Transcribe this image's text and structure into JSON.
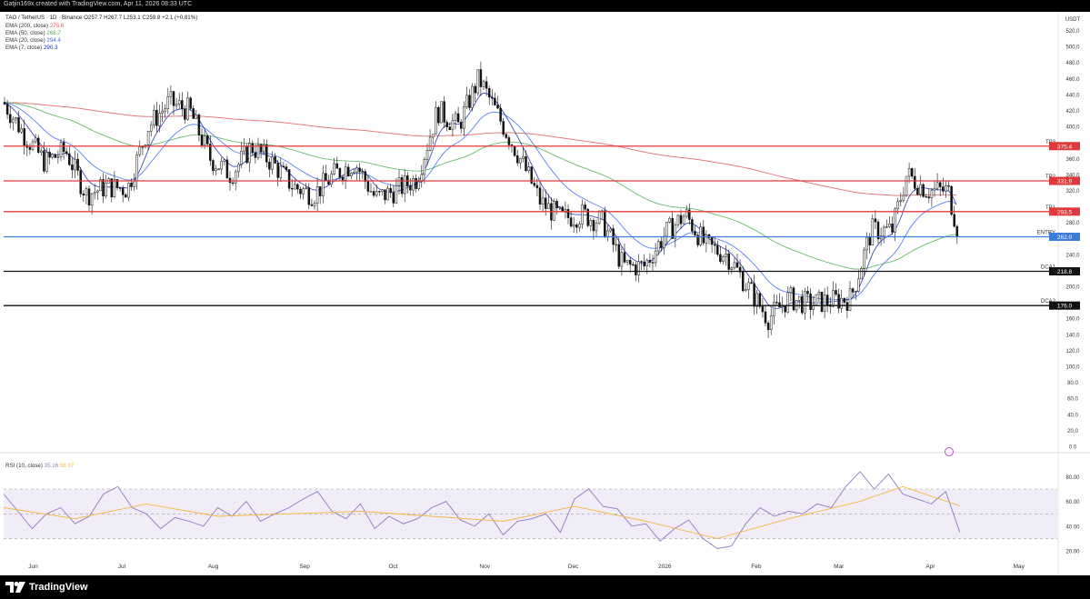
{
  "header": {
    "caption": "Gatjin169x created with TradingView.com, Apr 11, 2026 08:33 UTC"
  },
  "branding": {
    "logo_text": "TradingView",
    "logo_icon": "tradingview-logo-icon"
  },
  "legend": {
    "symbol_line": "TAO / TetherUS · 1D · Binance  O257.7  H267.7  L253.1  C259.8  +2.1 (+0.81%)",
    "ema_lines": [
      {
        "label": "EMA (200, close)",
        "value": "275.6",
        "color": "#e05555"
      },
      {
        "label": "EMA (50, close)",
        "value": "268.7",
        "color": "#4caf50"
      },
      {
        "label": "EMA (20, close)",
        "value": "294.4",
        "color": "#3d6bf0"
      },
      {
        "label": "EMA (7, close)",
        "value": "290.3",
        "color": "#1e2fb0"
      }
    ],
    "rsi_label": "RSI (10, close)",
    "rsi_values": [
      {
        "value": "35.16",
        "color": "#8e7cc3"
      },
      {
        "value": "56.37",
        "color": "#f5b740"
      }
    ]
  },
  "colors": {
    "up": "#2b2b2b",
    "down": "#141414",
    "tp": "#e0393b",
    "entry": "#3d7bd9",
    "dca": "#111111",
    "rsi": "#8e7cc3",
    "rsi_ma": "#f5b740",
    "rsi_band": "#ece7f6"
  },
  "chart_data": [
    {
      "type": "candlestick",
      "title": "TAO / TetherUS · 1D · Binance",
      "x_labels": [
        "Jun",
        "Jul",
        "Aug",
        "Sep",
        "Oct",
        "Nov",
        "Dec",
        "2026",
        "Feb",
        "Mar",
        "Apr",
        "May"
      ],
      "y_unit": "USDT",
      "y_ticks": [
        0,
        20,
        40,
        60,
        80,
        100,
        120,
        140,
        160,
        180,
        200,
        220,
        240,
        260,
        280,
        300,
        320,
        340,
        360,
        380,
        400,
        420,
        440,
        460,
        480,
        500,
        520
      ],
      "ylim": [
        0,
        532
      ],
      "grid": false,
      "levels": [
        {
          "name": "TP3",
          "value": 375.4,
          "label": "375.4",
          "kind": "tp"
        },
        {
          "name": "TP2",
          "value": 331.9,
          "label": "331.9",
          "kind": "tp"
        },
        {
          "name": "TP1",
          "value": 293.5,
          "label": "293.5",
          "kind": "tp"
        },
        {
          "name": "ENTRY",
          "value": 262.0,
          "label": "262.0",
          "kind": "entry"
        },
        {
          "name": "DCA1",
          "value": 218.8,
          "label": "218.8",
          "kind": "dca"
        },
        {
          "name": "DCA2",
          "value": 176.0,
          "label": "176.0",
          "kind": "dca"
        }
      ],
      "close_series": [
        [
          "2025-05-22",
          430
        ],
        [
          "2025-05-29",
          390
        ],
        [
          "2025-06-05",
          355
        ],
        [
          "2025-06-12",
          370
        ],
        [
          "2025-06-19",
          315
        ],
        [
          "2025-06-26",
          325
        ],
        [
          "2025-07-03",
          322
        ],
        [
          "2025-07-10",
          400
        ],
        [
          "2025-07-17",
          430
        ],
        [
          "2025-07-24",
          420
        ],
        [
          "2025-07-31",
          360
        ],
        [
          "2025-08-07",
          340
        ],
        [
          "2025-08-14",
          375
        ],
        [
          "2025-08-21",
          355
        ],
        [
          "2025-08-28",
          325
        ],
        [
          "2025-09-04",
          315
        ],
        [
          "2025-09-11",
          340
        ],
        [
          "2025-09-18",
          355
        ],
        [
          "2025-09-25",
          310
        ],
        [
          "2025-10-02",
          320
        ],
        [
          "2025-10-09",
          335
        ],
        [
          "2025-10-16",
          420
        ],
        [
          "2025-10-23",
          400
        ],
        [
          "2025-10-30",
          460
        ],
        [
          "2025-11-06",
          410
        ],
        [
          "2025-11-13",
          360
        ],
        [
          "2025-11-20",
          305
        ],
        [
          "2025-11-27",
          285
        ],
        [
          "2025-12-04",
          290
        ],
        [
          "2025-12-11",
          280
        ],
        [
          "2025-12-18",
          225
        ],
        [
          "2025-12-25",
          225
        ],
        [
          "2026-01-01",
          265
        ],
        [
          "2026-01-08",
          290
        ],
        [
          "2026-01-15",
          250
        ],
        [
          "2026-01-22",
          240
        ],
        [
          "2026-01-29",
          200
        ],
        [
          "2026-02-05",
          160
        ],
        [
          "2026-02-12",
          185
        ],
        [
          "2026-02-19",
          178
        ],
        [
          "2026-02-26",
          182
        ],
        [
          "2026-03-05",
          185
        ],
        [
          "2026-03-12",
          270
        ],
        [
          "2026-03-19",
          270
        ],
        [
          "2026-03-24",
          340
        ],
        [
          "2026-03-31",
          320
        ],
        [
          "2026-04-07",
          320
        ],
        [
          "2026-04-09",
          290
        ],
        [
          "2026-04-11",
          259.8
        ]
      ],
      "ema_series": {
        "EMA (200, close)": [
          360,
          368,
          372,
          368,
          362,
          355,
          345,
          330,
          310,
          295,
          285,
          275.6
        ],
        "EMA (50, close)": [
          370,
          362,
          356,
          348,
          345,
          370,
          310,
          275,
          225,
          195,
          240,
          268.7
        ]
      }
    },
    {
      "type": "line",
      "title": "RSI (10, close)",
      "y_ticks": [
        20,
        40,
        60,
        80
      ],
      "ylim": [
        15,
        92
      ],
      "band": [
        30,
        70
      ],
      "midline": 50,
      "series": [
        {
          "name": "RSI (10, close)",
          "values": [
            [
              0,
              66
            ],
            [
              0.02,
              52
            ],
            [
              0.04,
              38
            ],
            [
              0.06,
              50
            ],
            [
              0.08,
              55
            ],
            [
              0.1,
              42
            ],
            [
              0.12,
              48
            ],
            [
              0.14,
              66
            ],
            [
              0.16,
              72
            ],
            [
              0.18,
              55
            ],
            [
              0.2,
              50
            ],
            [
              0.22,
              38
            ],
            [
              0.24,
              47
            ],
            [
              0.26,
              44
            ],
            [
              0.28,
              40
            ],
            [
              0.3,
              55
            ],
            [
              0.32,
              48
            ],
            [
              0.34,
              60
            ],
            [
              0.36,
              44
            ],
            [
              0.38,
              50
            ],
            [
              0.4,
              55
            ],
            [
              0.42,
              62
            ],
            [
              0.44,
              68
            ],
            [
              0.46,
              52
            ],
            [
              0.48,
              46
            ],
            [
              0.5,
              58
            ],
            [
              0.52,
              38
            ],
            [
              0.54,
              48
            ],
            [
              0.56,
              42
            ],
            [
              0.58,
              46
            ],
            [
              0.6,
              55
            ],
            [
              0.62,
              60
            ],
            [
              0.64,
              45
            ],
            [
              0.66,
              40
            ],
            [
              0.68,
              50
            ],
            [
              0.7,
              33
            ],
            [
              0.72,
              44
            ],
            [
              0.74,
              46
            ],
            [
              0.76,
              50
            ],
            [
              0.78,
              35
            ],
            [
              0.8,
              62
            ],
            [
              0.82,
              70
            ],
            [
              0.84,
              56
            ],
            [
              0.86,
              54
            ],
            [
              0.88,
              40
            ],
            [
              0.9,
              42
            ],
            [
              0.92,
              28
            ],
            [
              0.94,
              38
            ],
            [
              0.96,
              45
            ],
            [
              0.98,
              30
            ],
            [
              1.0,
              22
            ],
            [
              1.02,
              24
            ],
            [
              1.04,
              42
            ],
            [
              1.06,
              55
            ],
            [
              1.08,
              48
            ],
            [
              1.1,
              52
            ],
            [
              1.12,
              50
            ],
            [
              1.14,
              58
            ],
            [
              1.16,
              55
            ],
            [
              1.18,
              72
            ],
            [
              1.2,
              84
            ],
            [
              1.22,
              70
            ],
            [
              1.24,
              82
            ],
            [
              1.26,
              66
            ],
            [
              1.28,
              62
            ],
            [
              1.3,
              58
            ],
            [
              1.32,
              68
            ],
            [
              1.34,
              35
            ]
          ]
        },
        {
          "name": "RSI MA",
          "values": [
            [
              0,
              55
            ],
            [
              0.1,
              46
            ],
            [
              0.2,
              58
            ],
            [
              0.3,
              48
            ],
            [
              0.4,
              50
            ],
            [
              0.5,
              52
            ],
            [
              0.6,
              48
            ],
            [
              0.7,
              44
            ],
            [
              0.8,
              56
            ],
            [
              0.9,
              44
            ],
            [
              1.0,
              30
            ],
            [
              1.1,
              46
            ],
            [
              1.2,
              60
            ],
            [
              1.26,
              72
            ],
            [
              1.34,
              56.37
            ]
          ]
        }
      ]
    }
  ]
}
